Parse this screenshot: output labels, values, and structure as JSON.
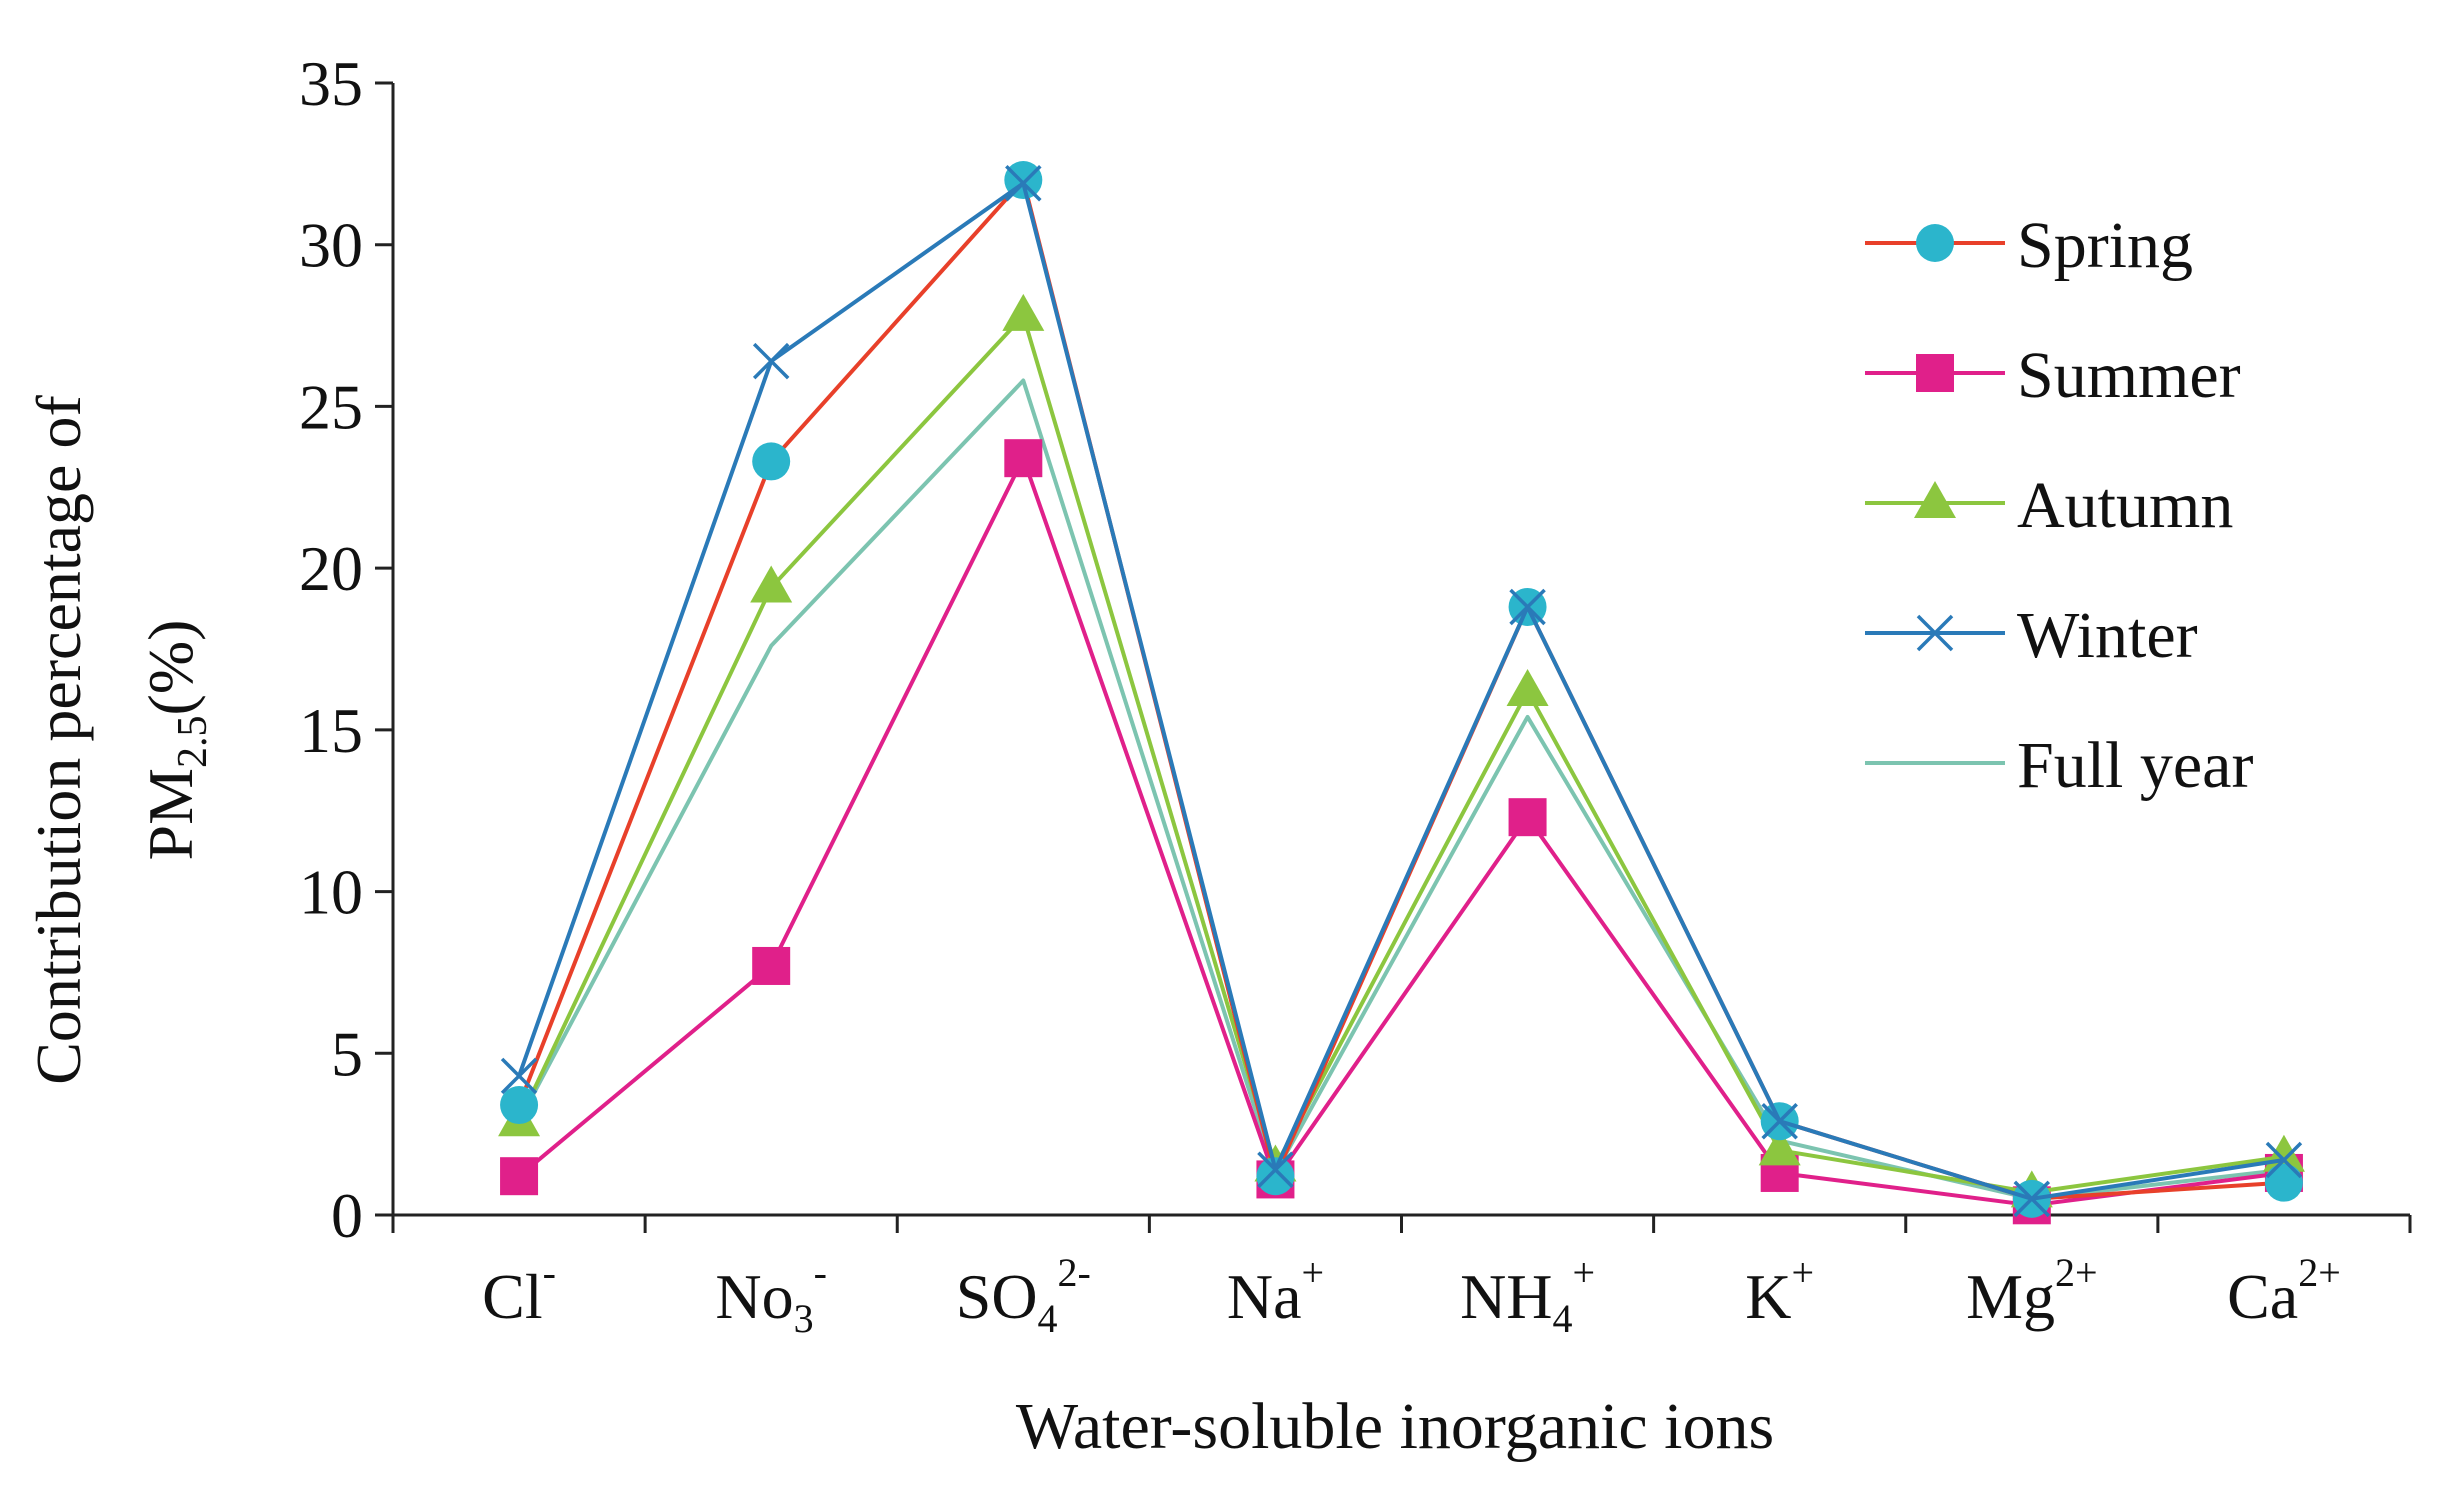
{
  "chart_data": {
    "type": "line",
    "title": "",
    "xlabel": "Water-soluble inorganic ions",
    "ylabel": {
      "line1": "Contribution percentage of",
      "line2_prefix": "PM",
      "line2_sub": "2.5",
      "line2_suffix": "(%)"
    },
    "ylim": [
      0,
      35
    ],
    "yticks": [
      0,
      5,
      10,
      15,
      20,
      25,
      30,
      35
    ],
    "categories": [
      {
        "base": "Cl",
        "sub": "",
        "sup": "-"
      },
      {
        "base": "No",
        "sub": "3",
        "sup": "-"
      },
      {
        "base": "SO",
        "sub": "4",
        "sup": "2-"
      },
      {
        "base": "Na",
        "sub": "",
        "sup": "+"
      },
      {
        "base": "NH",
        "sub": "4",
        "sup": "+"
      },
      {
        "base": "K",
        "sub": "",
        "sup": "+"
      },
      {
        "base": "Mg",
        "sub": "",
        "sup": "2+"
      },
      {
        "base": "Ca",
        "sub": "",
        "sup": "2+"
      }
    ],
    "series": [
      {
        "name": "Spring",
        "line_color": "#e8402a",
        "marker_color": "#2bb5cc",
        "marker": "circle",
        "values": [
          3.4,
          23.3,
          32.0,
          1.2,
          18.8,
          2.9,
          0.5,
          1.0
        ]
      },
      {
        "name": "Summer",
        "line_color": "#e0208a",
        "marker_color": "#e0208a",
        "marker": "square",
        "values": [
          1.2,
          7.7,
          23.4,
          1.1,
          12.3,
          1.3,
          0.3,
          1.3
        ]
      },
      {
        "name": "Autumn",
        "line_color": "#8cc63f",
        "marker_color": "#8cc63f",
        "marker": "triangle",
        "values": [
          2.9,
          19.4,
          27.8,
          1.5,
          16.2,
          2.0,
          0.7,
          1.8
        ]
      },
      {
        "name": "Winter",
        "line_color": "#2a7ab8",
        "marker_color": "#2a7ab8",
        "marker": "x",
        "values": [
          4.3,
          26.4,
          31.9,
          1.4,
          18.8,
          2.9,
          0.5,
          1.7
        ]
      },
      {
        "name": "Full year",
        "line_color": "#7cc4b0",
        "marker_color": "#7cc4b0",
        "marker": "none",
        "values": [
          2.9,
          17.6,
          25.8,
          1.3,
          15.4,
          2.3,
          0.5,
          1.4
        ]
      }
    ],
    "legend": {
      "placement": "top-right"
    }
  }
}
